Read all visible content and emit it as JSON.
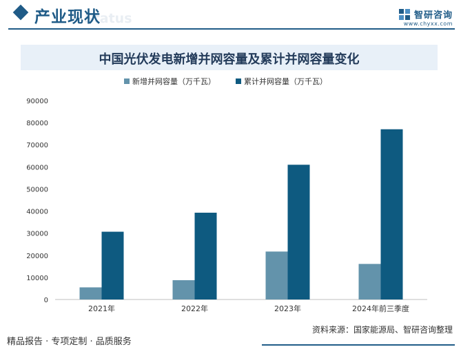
{
  "header": {
    "section_title": "产业现状",
    "section_watermark": "Status",
    "brand_name": "智研咨询",
    "brand_url": "www.chyxx.com"
  },
  "chart_data": {
    "type": "bar",
    "title": "中国光伏发电新增并网容量及累计并网容量变化",
    "categories": [
      "2021年",
      "2022年",
      "2023年",
      "2024年前三季度"
    ],
    "series": [
      {
        "name": "新增并网容量（万千瓦）",
        "values": [
          5488,
          8741,
          21688,
          16088
        ],
        "color": "#6393ab"
      },
      {
        "name": "累计并网容量（万千瓦）",
        "values": [
          30656,
          39261,
          60949,
          77000
        ],
        "color": "#0e5a80"
      }
    ],
    "ylim": [
      0,
      90000
    ],
    "yticks": [
      0,
      10000,
      20000,
      30000,
      40000,
      50000,
      60000,
      70000,
      80000,
      90000
    ],
    "legend_position": "top-center",
    "grid": false,
    "xlabel": "",
    "ylabel": ""
  },
  "footer": {
    "source": "资料来源：国家能源局、智研咨询整理",
    "tagline": "精品报告 · 专项定制 · 品质服务"
  }
}
